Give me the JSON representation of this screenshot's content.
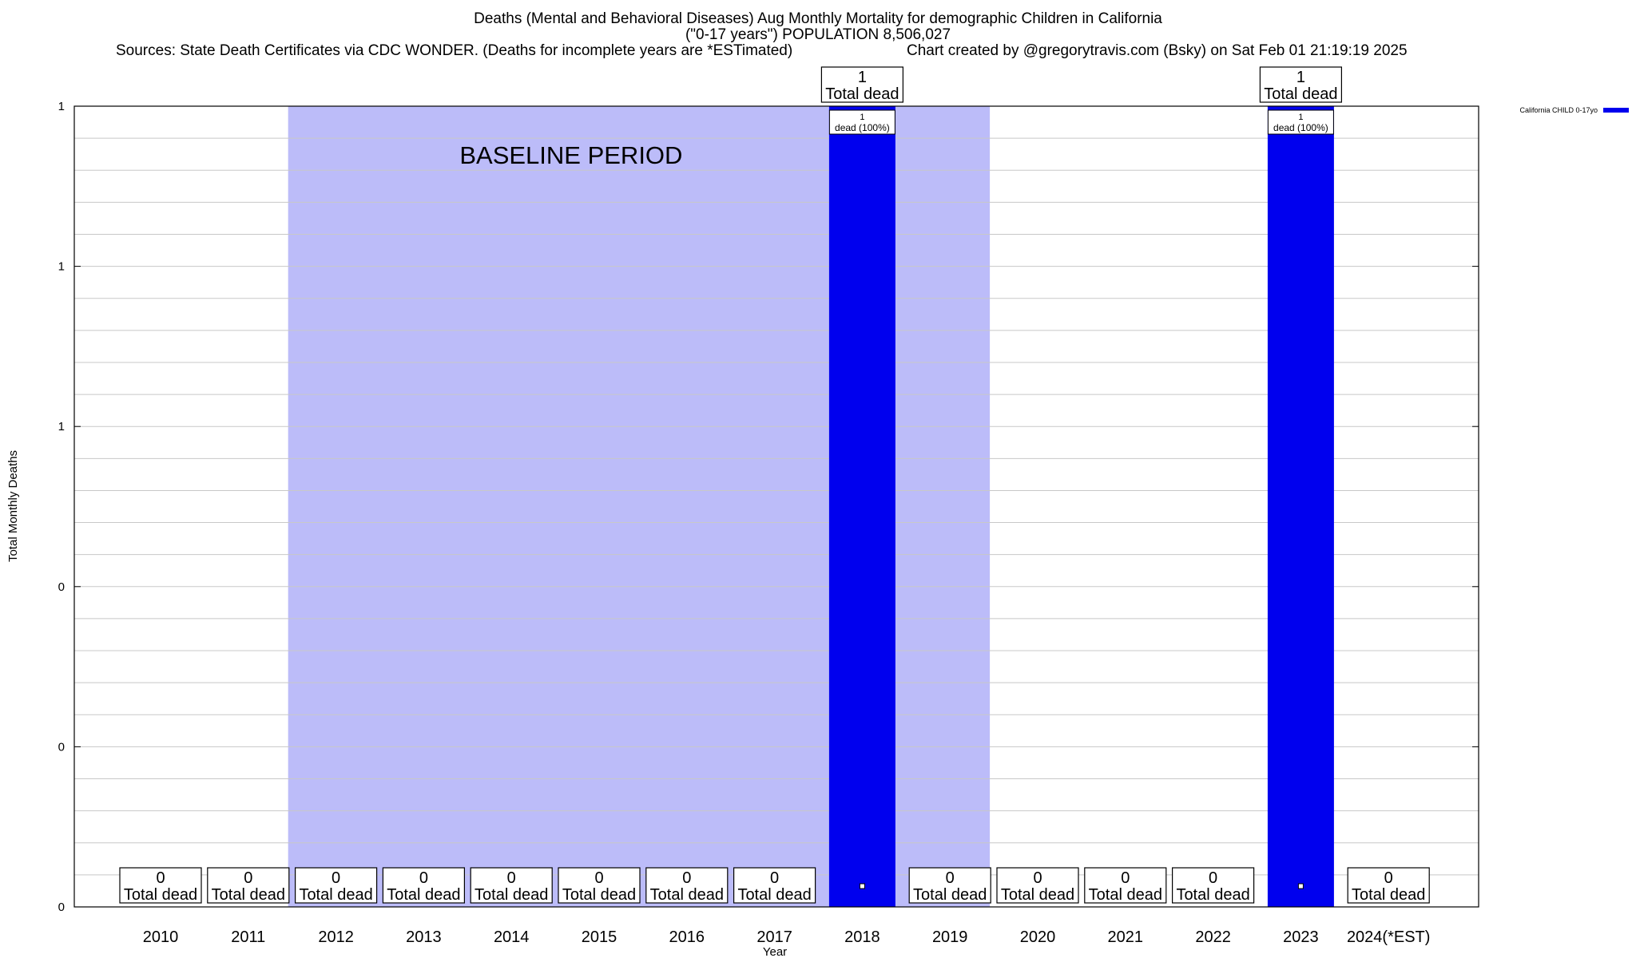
{
  "chart_data": {
    "type": "bar",
    "title": "Deaths (Mental and Behavioral Diseases) Aug Monthly Mortality for demographic Children in California",
    "subtitle": "(\"0-17 years\") POPULATION 8,506,027",
    "source_note": "Sources: State Death Certificates via CDC WONDER. (Deaths for incomplete years are *ESTimated)",
    "credit_note": "Chart created by @gregorytravis.com (Bsky) on Sat Feb 01 21:19:19 2025",
    "xlabel": "Year",
    "ylabel": "Total Monthly Deaths",
    "categories": [
      "2010",
      "2011",
      "2012",
      "2013",
      "2014",
      "2015",
      "2016",
      "2017",
      "2018",
      "2019",
      "2020",
      "2021",
      "2022",
      "2023",
      "2024(*EST)"
    ],
    "series": [
      {
        "name": "California CHILD 0-17yo",
        "color": "#0000ee",
        "values": [
          0,
          0,
          0,
          0,
          0,
          0,
          0,
          0,
          1,
          0,
          0,
          0,
          0,
          1,
          0
        ]
      }
    ],
    "total_labels": [
      "0",
      "0",
      "0",
      "0",
      "0",
      "0",
      "0",
      "0",
      "1",
      "0",
      "0",
      "0",
      "0",
      "1",
      "0"
    ],
    "total_label_caption": "Total dead",
    "bar_inner_labels": [
      "",
      "",
      "",
      "",
      "",
      "",
      "",
      "",
      "1",
      "",
      "",
      "",
      "",
      "1",
      ""
    ],
    "bar_inner_caption": "dead (100%)",
    "ylim": [
      0,
      1
    ],
    "y_tick_labels": [
      "0",
      "0",
      "0",
      "1",
      "1",
      "1"
    ],
    "grid": true,
    "legend_position": "top-right",
    "annotation": {
      "text": "BASELINE PERIOD",
      "color": "#bcbcf9",
      "start_category": "2012",
      "end_category": "2019"
    }
  }
}
